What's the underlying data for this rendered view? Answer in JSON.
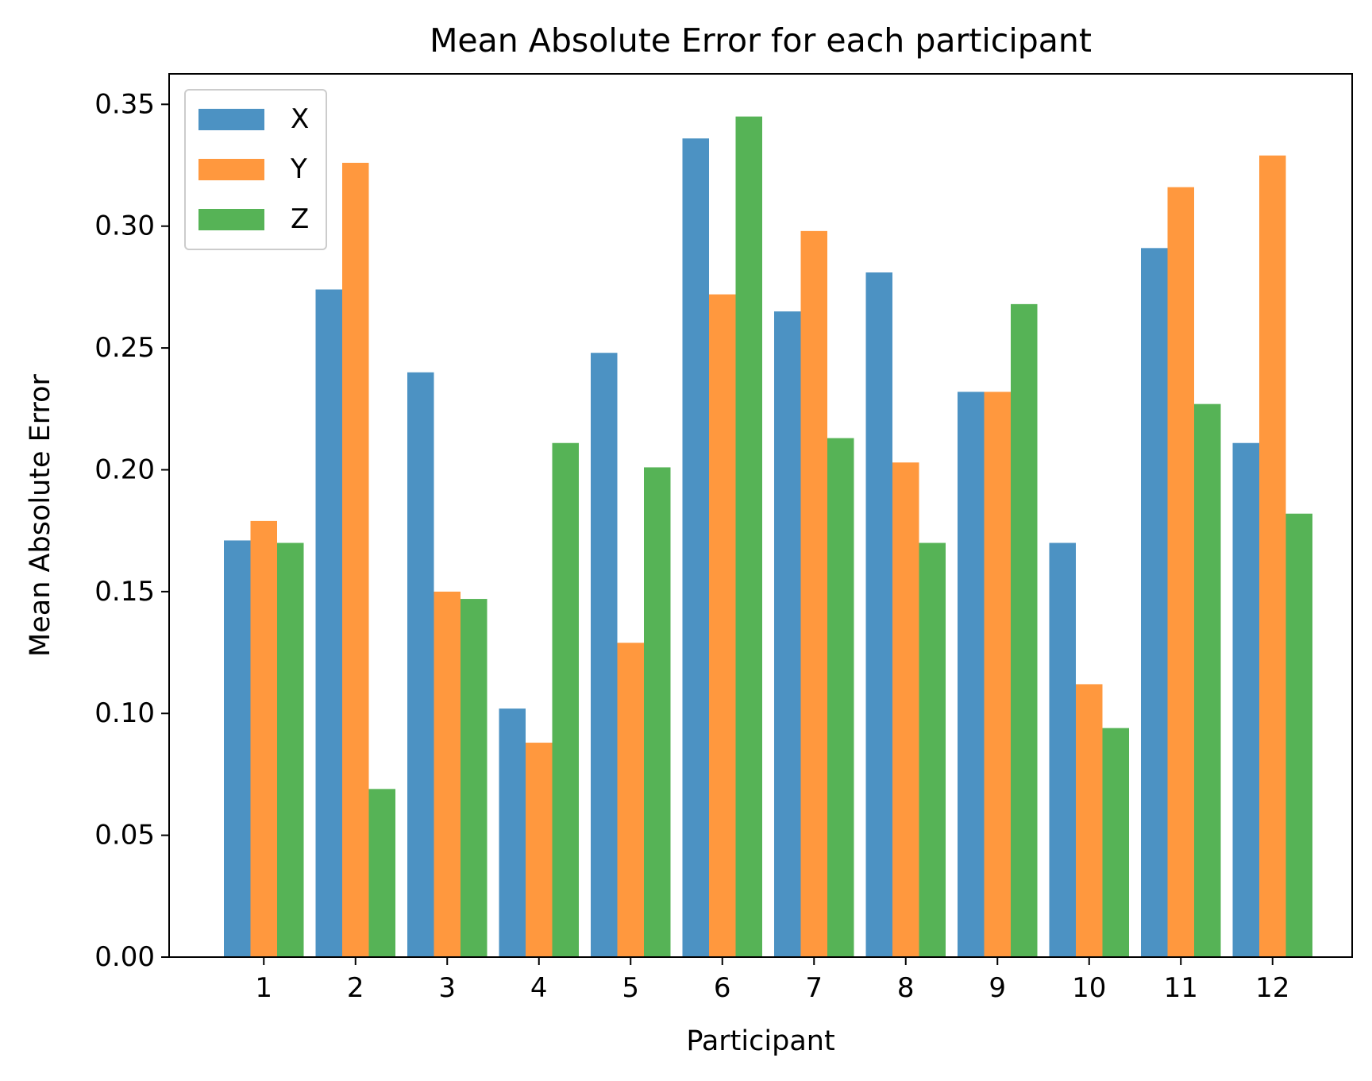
{
  "chart_data": {
    "type": "bar",
    "title": "Mean Absolute Error for each participant",
    "xlabel": "Participant",
    "ylabel": "Mean Absolute Error",
    "categories": [
      "1",
      "2",
      "3",
      "4",
      "5",
      "6",
      "7",
      "8",
      "9",
      "10",
      "11",
      "12"
    ],
    "series": [
      {
        "name": "X",
        "color": "#4c92c3",
        "values": [
          0.171,
          0.274,
          0.24,
          0.102,
          0.248,
          0.336,
          0.265,
          0.281,
          0.232,
          0.17,
          0.291,
          0.211
        ]
      },
      {
        "name": "Y",
        "color": "#ff983e",
        "values": [
          0.179,
          0.326,
          0.15,
          0.088,
          0.129,
          0.272,
          0.298,
          0.203,
          0.232,
          0.112,
          0.316,
          0.329
        ]
      },
      {
        "name": "Z",
        "color": "#56b356",
        "values": [
          0.17,
          0.069,
          0.147,
          0.211,
          0.201,
          0.345,
          0.213,
          0.17,
          0.268,
          0.094,
          0.227,
          0.182
        ]
      }
    ],
    "ylim": [
      0,
      0.3625
    ],
    "yticks": [
      "0.00",
      "0.05",
      "0.10",
      "0.15",
      "0.20",
      "0.25",
      "0.30",
      "0.35"
    ],
    "legend_position": "top-left",
    "grid": false
  }
}
